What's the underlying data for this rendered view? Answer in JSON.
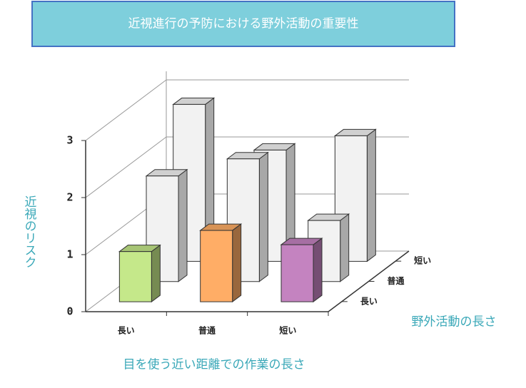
{
  "chart_data": {
    "type": "bar3d",
    "title": "近視進行の予防における野外活動の重要性",
    "y_label": "近視のリスク",
    "x_label": "目を使う近い距離での作業の長さ",
    "depth_label": "野外活動の長さ",
    "categories": [
      "長い",
      "普通",
      "短い"
    ],
    "series": [
      {
        "name": "長い",
        "colors": [
          "#c5e88a",
          "#ffad66",
          "#c483c0"
        ],
        "values": [
          0.88,
          1.25,
          1.0
        ]
      },
      {
        "name": "普通",
        "colors": [
          "#f2f2f2",
          "#f2f2f2",
          "#f2f2f2"
        ],
        "values": [
          1.85,
          2.15,
          1.07
        ]
      },
      {
        "name": "短い",
        "colors": [
          "#f2f2f2",
          "#f2f2f2",
          "#f2f2f2"
        ],
        "values": [
          2.75,
          1.95,
          2.2
        ]
      }
    ],
    "ylim": [
      0,
      3
    ],
    "yticks": [
      0,
      1,
      2,
      3
    ],
    "grid": true
  }
}
